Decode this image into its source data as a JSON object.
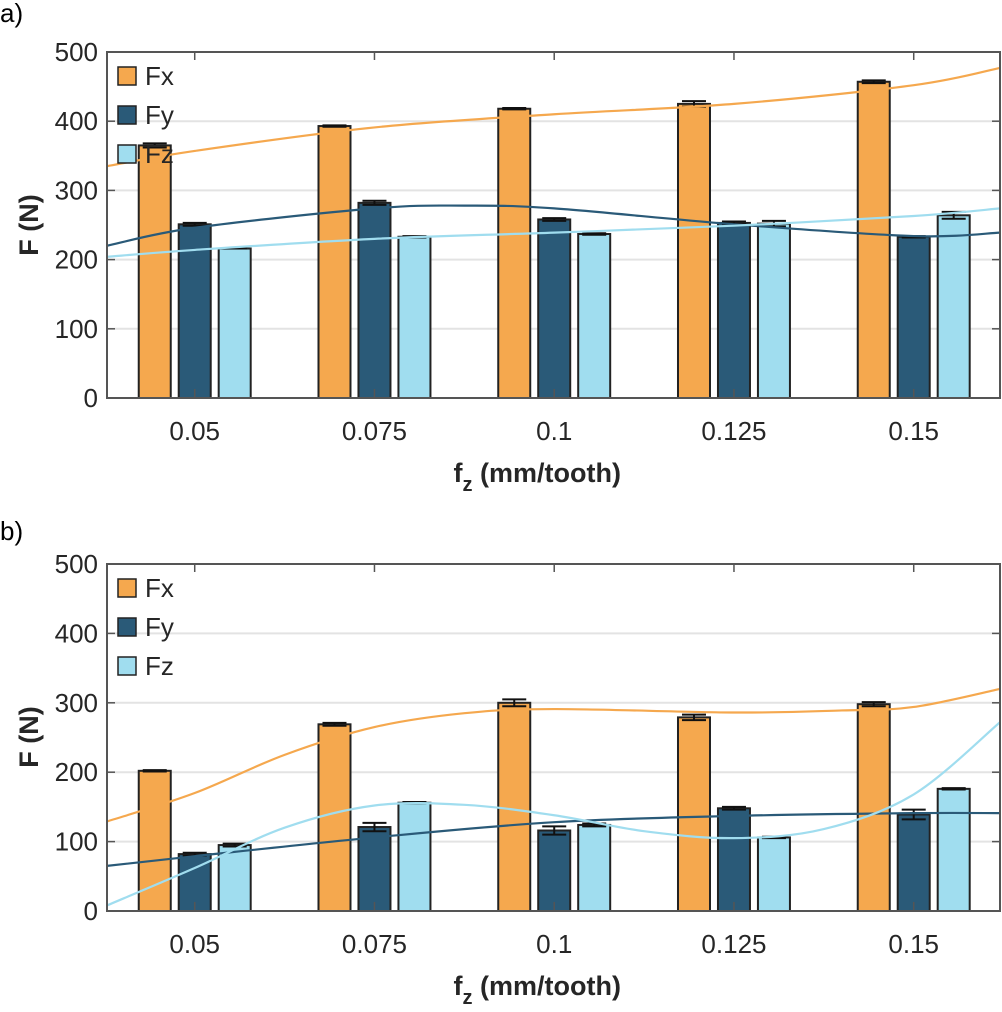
{
  "colors": {
    "Fx": "#F5A84E",
    "Fy": "#2A5A78",
    "Fz": "#A0DDEF",
    "grid": "#e3e3e3",
    "axis": "#555555"
  },
  "chart_data": [
    {
      "type": "bar",
      "panel_label": "a)",
      "categories": [
        "0.05",
        "0.075",
        "0.1",
        "0.125",
        "0.15"
      ],
      "x": [
        0.05,
        0.075,
        0.1,
        0.125,
        0.15
      ],
      "xlim": [
        0.0378,
        0.162
      ],
      "ylim": [
        0,
        500
      ],
      "yticks": [
        "0",
        "100",
        "200",
        "300",
        "400",
        "500"
      ],
      "xlabel": "f",
      "xlabel_sub": "z",
      "xlabel_rest": " (mm/tooth)",
      "ylabel": "F (N)",
      "grid": true,
      "legend_position": "top-left",
      "series": [
        {
          "name": "Fx",
          "values": [
            365,
            393,
            418,
            425,
            457
          ],
          "errors": [
            3,
            1,
            1,
            4,
            2
          ],
          "fit": [
            [
              0.0378,
              335
            ],
            [
              0.05,
              357
            ],
            [
              0.075,
              391
            ],
            [
              0.1,
              410
            ],
            [
              0.125,
              425
            ],
            [
              0.15,
              452
            ],
            [
              0.162,
              477
            ]
          ]
        },
        {
          "name": "Fy",
          "values": [
            251,
            282,
            258,
            253,
            233
          ],
          "errors": [
            2,
            3,
            2,
            2,
            1
          ],
          "fit": [
            [
              0.0378,
              220
            ],
            [
              0.05,
              246
            ],
            [
              0.075,
              274
            ],
            [
              0.0875,
              278
            ],
            [
              0.1,
              274
            ],
            [
              0.125,
              251
            ],
            [
              0.15,
              234
            ],
            [
              0.162,
              239
            ]
          ]
        },
        {
          "name": "Fz",
          "values": [
            216,
            233,
            237,
            252,
            264
          ],
          "errors": [
            0,
            1,
            1,
            4,
            5
          ],
          "fit": [
            [
              0.0378,
              204
            ],
            [
              0.05,
              214
            ],
            [
              0.075,
              230
            ],
            [
              0.1,
              239
            ],
            [
              0.125,
              249
            ],
            [
              0.15,
              263
            ],
            [
              0.162,
              274
            ]
          ]
        }
      ]
    },
    {
      "type": "bar",
      "panel_label": "b)",
      "categories": [
        "0.05",
        "0.075",
        "0.1",
        "0.125",
        "0.15"
      ],
      "x": [
        0.05,
        0.075,
        0.1,
        0.125,
        0.15
      ],
      "xlim": [
        0.0378,
        0.162
      ],
      "ylim": [
        0,
        500
      ],
      "yticks": [
        "0",
        "100",
        "200",
        "300",
        "400",
        "500"
      ],
      "xlabel": "f",
      "xlabel_sub": "z",
      "xlabel_rest": " (mm/tooth)",
      "ylabel": "F (N)",
      "grid": true,
      "legend_position": "top-left",
      "series": [
        {
          "name": "Fx",
          "values": [
            202,
            269,
            300,
            279,
            298
          ],
          "errors": [
            1,
            2,
            5,
            4,
            3
          ],
          "fit": [
            [
              0.0378,
              129
            ],
            [
              0.05,
              170
            ],
            [
              0.0625,
              225
            ],
            [
              0.075,
              265
            ],
            [
              0.0875,
              285
            ],
            [
              0.1,
              291
            ],
            [
              0.125,
              286
            ],
            [
              0.14,
              289
            ],
            [
              0.15,
              294
            ],
            [
              0.162,
              320
            ]
          ]
        },
        {
          "name": "Fy",
          "values": [
            82,
            121,
            116,
            148,
            139
          ],
          "errors": [
            2,
            6,
            6,
            2,
            7
          ],
          "fit": [
            [
              0.0378,
              65
            ],
            [
              0.05,
              79
            ],
            [
              0.075,
              106
            ],
            [
              0.1,
              128
            ],
            [
              0.125,
              137
            ],
            [
              0.15,
              141
            ],
            [
              0.162,
              141
            ]
          ]
        },
        {
          "name": "Fz",
          "values": [
            95,
            156,
            124,
            106,
            176
          ],
          "errors": [
            2,
            1,
            2,
            1,
            1
          ],
          "fit": [
            [
              0.0378,
              8
            ],
            [
              0.05,
              62
            ],
            [
              0.0625,
              120
            ],
            [
              0.075,
              152
            ],
            [
              0.0875,
              153
            ],
            [
              0.1,
              138
            ],
            [
              0.1125,
              115
            ],
            [
              0.125,
              105
            ],
            [
              0.1375,
              118
            ],
            [
              0.15,
              168
            ],
            [
              0.162,
              272
            ]
          ]
        }
      ]
    }
  ]
}
